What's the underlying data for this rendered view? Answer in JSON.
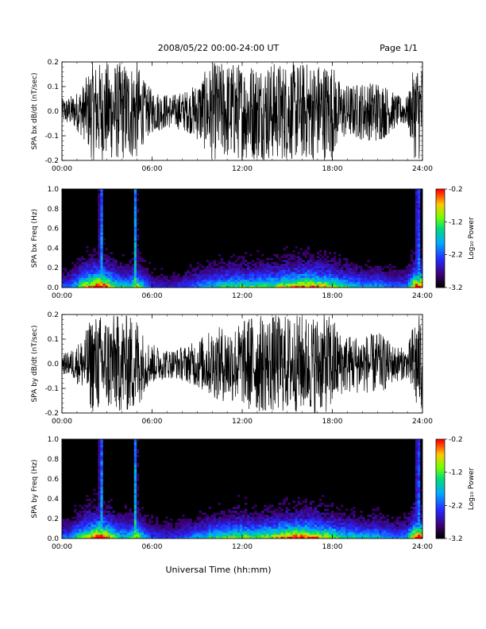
{
  "header": {
    "title": "2008/05/22  00:00-24:00 UT",
    "page_label": "Page 1/1"
  },
  "footer": {
    "xlabel": "Universal Time (hh:mm)"
  },
  "chart_data": [
    {
      "type": "line",
      "ylabel": "SPA bx dB/dt (nT/sec)",
      "xlim": [
        "00:00",
        "24:00"
      ],
      "ylim": [
        -0.2,
        0.2
      ],
      "x_ticks": [
        "00:00",
        "06:00",
        "12:00",
        "18:00",
        "24:00"
      ],
      "y_ticks": [
        "0.2",
        "0.1",
        "0.0",
        "-0.1",
        "-0.2"
      ],
      "color": "#000000",
      "envelope": {
        "x_hours": [
          0,
          0.5,
          1,
          1.5,
          2,
          2.5,
          3,
          3.5,
          4,
          4.5,
          5,
          5.5,
          6,
          6.5,
          7,
          7.5,
          8,
          8.5,
          9,
          9.5,
          10,
          10.5,
          11,
          11.5,
          12,
          12.5,
          13,
          13.5,
          14,
          14.5,
          15,
          15.5,
          16,
          16.5,
          17,
          17.5,
          18,
          18.5,
          19,
          19.5,
          20,
          20.5,
          21,
          21.5,
          22,
          22.5,
          23,
          23.5,
          24
        ],
        "amplitude": [
          0.05,
          0.06,
          0.08,
          0.12,
          0.2,
          0.2,
          0.2,
          0.2,
          0.2,
          0.2,
          0.2,
          0.12,
          0.09,
          0.08,
          0.07,
          0.07,
          0.08,
          0.09,
          0.12,
          0.16,
          0.2,
          0.2,
          0.2,
          0.2,
          0.2,
          0.2,
          0.2,
          0.2,
          0.2,
          0.2,
          0.2,
          0.2,
          0.2,
          0.2,
          0.2,
          0.2,
          0.2,
          0.12,
          0.11,
          0.11,
          0.12,
          0.12,
          0.13,
          0.11,
          0.08,
          0.06,
          0.06,
          0.2,
          0.2
        ]
      }
    },
    {
      "type": "heatmap",
      "ylabel": "SPA bx Freq (Hz)",
      "xlim": [
        "00:00",
        "24:00"
      ],
      "ylim": [
        0.0,
        1.0
      ],
      "x_ticks": [
        "00:00",
        "06:00",
        "12:00",
        "18:00",
        "24:00"
      ],
      "y_ticks": [
        "1.0",
        "0.8",
        "0.6",
        "0.4",
        "0.2",
        "0.0"
      ],
      "colorbar": {
        "label": "Log₁₀ Power",
        "range": [
          -3.2,
          -0.2
        ],
        "ticks": [
          "-0.2",
          "-1.2",
          "-2.2",
          "-3.2"
        ]
      },
      "activity": {
        "x_hours": [
          0,
          0.5,
          1,
          1.5,
          2,
          2.5,
          3,
          3.5,
          4,
          4.5,
          5,
          5.5,
          6,
          6.5,
          7,
          7.5,
          8,
          8.5,
          9,
          9.5,
          10,
          10.5,
          11,
          11.5,
          12,
          12.5,
          13,
          13.5,
          14,
          14.5,
          15,
          15.5,
          16,
          16.5,
          17,
          17.5,
          18,
          18.5,
          19,
          19.5,
          20,
          20.5,
          21,
          21.5,
          22,
          22.5,
          23,
          23.5,
          24
        ],
        "level": [
          0.3,
          0.3,
          0.5,
          0.7,
          0.8,
          1.0,
          0.8,
          0.6,
          0.5,
          0.5,
          0.7,
          0.4,
          0.25,
          0.2,
          0.2,
          0.2,
          0.25,
          0.3,
          0.35,
          0.4,
          0.45,
          0.5,
          0.55,
          0.55,
          0.6,
          0.55,
          0.55,
          0.6,
          0.6,
          0.65,
          0.7,
          0.75,
          0.8,
          0.8,
          0.75,
          0.7,
          0.65,
          0.55,
          0.5,
          0.45,
          0.4,
          0.4,
          0.4,
          0.35,
          0.3,
          0.3,
          0.35,
          0.9,
          0.9
        ],
        "bright_columns_hours": [
          2.6,
          4.9,
          23.7
        ]
      }
    },
    {
      "type": "line",
      "ylabel": "SPA by dB/dt (nT/sec)",
      "xlim": [
        "00:00",
        "24:00"
      ],
      "ylim": [
        -0.2,
        0.2
      ],
      "x_ticks": [
        "00:00",
        "06:00",
        "12:00",
        "18:00",
        "24:00"
      ],
      "y_ticks": [
        "0.2",
        "0.1",
        "0.0",
        "-0.1",
        "-0.2"
      ],
      "color": "#000000",
      "envelope": {
        "x_hours": [
          0,
          0.5,
          1,
          1.5,
          2,
          2.5,
          3,
          3.5,
          4,
          4.5,
          5,
          5.5,
          6,
          6.5,
          7,
          7.5,
          8,
          8.5,
          9,
          9.5,
          10,
          10.5,
          11,
          11.5,
          12,
          12.5,
          13,
          13.5,
          14,
          14.5,
          15,
          15.5,
          16,
          16.5,
          17,
          17.5,
          18,
          18.5,
          19,
          19.5,
          20,
          20.5,
          21,
          21.5,
          22,
          22.5,
          23,
          23.5,
          24
        ],
        "amplitude": [
          0.04,
          0.05,
          0.08,
          0.12,
          0.2,
          0.2,
          0.2,
          0.2,
          0.2,
          0.2,
          0.2,
          0.11,
          0.08,
          0.07,
          0.06,
          0.06,
          0.07,
          0.08,
          0.1,
          0.12,
          0.14,
          0.15,
          0.16,
          0.16,
          0.17,
          0.2,
          0.2,
          0.2,
          0.2,
          0.2,
          0.2,
          0.2,
          0.2,
          0.2,
          0.2,
          0.2,
          0.2,
          0.13,
          0.12,
          0.12,
          0.12,
          0.12,
          0.13,
          0.11,
          0.08,
          0.07,
          0.06,
          0.2,
          0.2
        ]
      }
    },
    {
      "type": "heatmap",
      "ylabel": "SPA by Freq (Hz)",
      "xlim": [
        "00:00",
        "24:00"
      ],
      "ylim": [
        0.0,
        1.0
      ],
      "x_ticks": [
        "00:00",
        "06:00",
        "12:00",
        "18:00",
        "24:00"
      ],
      "y_ticks": [
        "1.0",
        "0.8",
        "0.6",
        "0.4",
        "0.2",
        "0.0"
      ],
      "colorbar": {
        "label": "Log₁₀ Power",
        "range": [
          -3.2,
          -0.2
        ],
        "ticks": [
          "-0.2",
          "-1.2",
          "-2.2",
          "-3.2"
        ]
      },
      "activity": {
        "x_hours": [
          0,
          0.5,
          1,
          1.5,
          2,
          2.5,
          3,
          3.5,
          4,
          4.5,
          5,
          5.5,
          6,
          6.5,
          7,
          7.5,
          8,
          8.5,
          9,
          9.5,
          10,
          10.5,
          11,
          11.5,
          12,
          12.5,
          13,
          13.5,
          14,
          14.5,
          15,
          15.5,
          16,
          16.5,
          17,
          17.5,
          18,
          18.5,
          19,
          19.5,
          20,
          20.5,
          21,
          21.5,
          22,
          22.5,
          23,
          23.5,
          24
        ],
        "level": [
          0.3,
          0.35,
          0.5,
          0.7,
          0.8,
          1.0,
          0.8,
          0.6,
          0.5,
          0.5,
          0.7,
          0.4,
          0.3,
          0.25,
          0.25,
          0.25,
          0.3,
          0.35,
          0.4,
          0.45,
          0.5,
          0.55,
          0.6,
          0.6,
          0.65,
          0.6,
          0.6,
          0.65,
          0.7,
          0.75,
          0.8,
          0.85,
          0.85,
          0.8,
          0.75,
          0.7,
          0.65,
          0.55,
          0.5,
          0.5,
          0.45,
          0.45,
          0.45,
          0.4,
          0.35,
          0.35,
          0.4,
          0.9,
          0.9
        ],
        "bright_columns_hours": [
          2.6,
          4.9,
          23.7
        ]
      }
    }
  ]
}
